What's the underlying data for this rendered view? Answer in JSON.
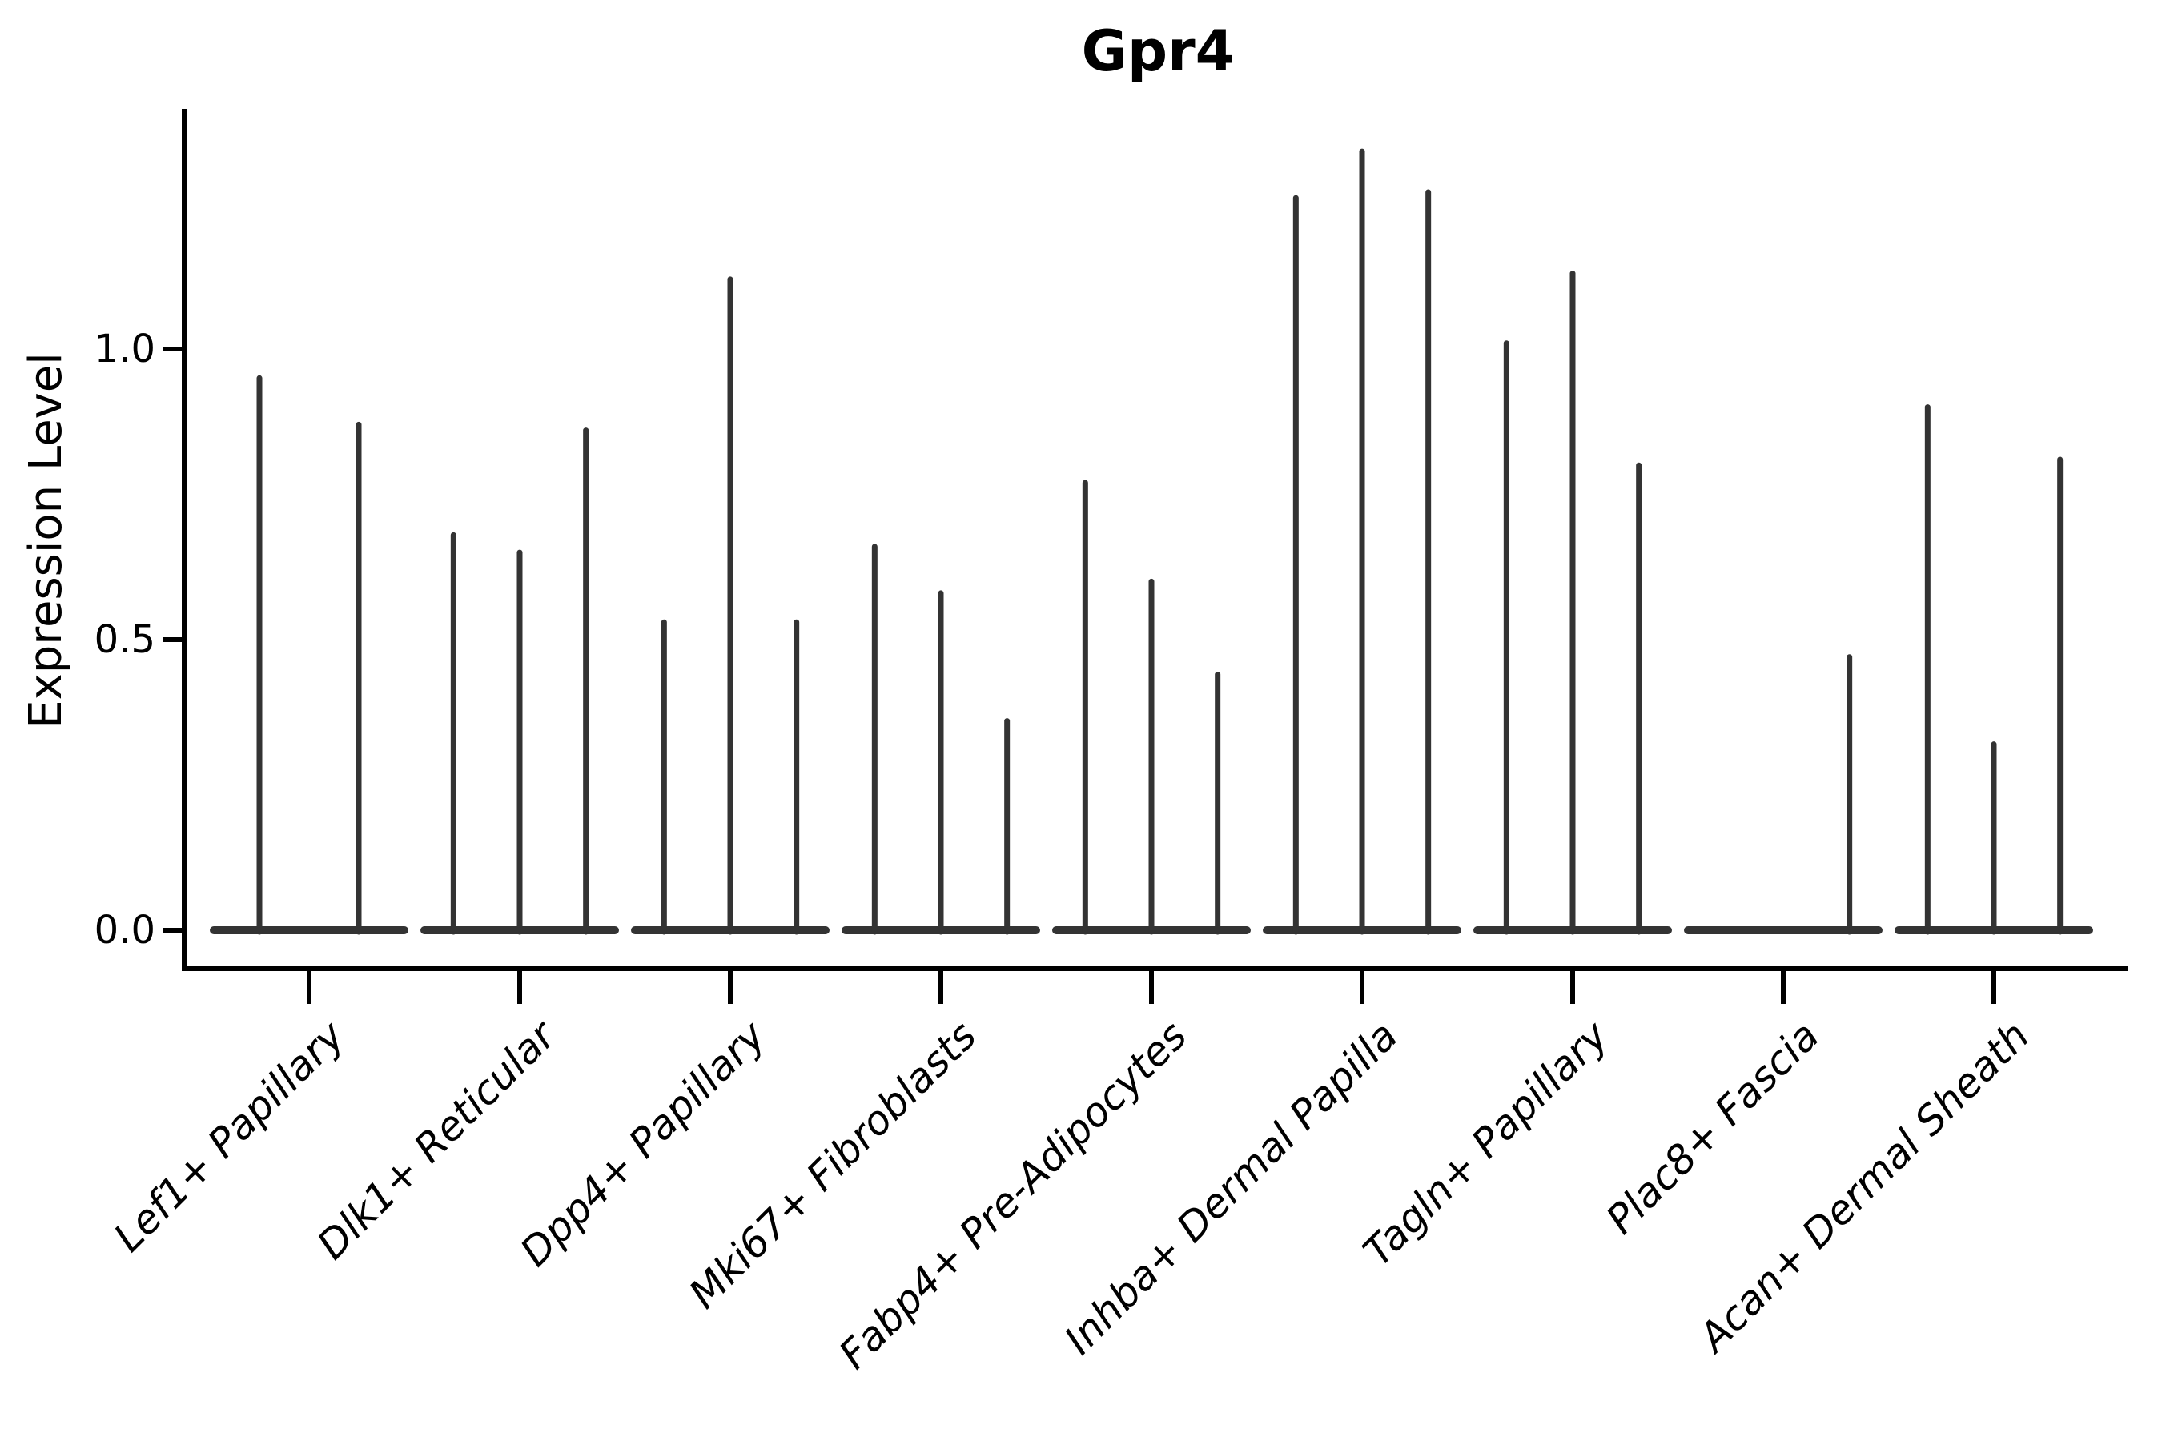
{
  "title": "Gpr4",
  "axes": {
    "ylabel": "Expression Level",
    "xlabel": ""
  },
  "chart_data": {
    "type": "violin",
    "title": "Gpr4",
    "ylabel": "Expression Level",
    "xlabel": "",
    "ytick_labels": [
      "0.0",
      "0.5",
      "1.0"
    ],
    "ytick_values": [
      0.0,
      0.5,
      1.0
    ],
    "ylim": [
      -0.07,
      1.41
    ],
    "grid": false,
    "legend": "none",
    "x_label_rotation_deg": 45,
    "categories": [
      {
        "label": "Lef1+ Papillary",
        "violin_maxima": [
          0.95,
          0.87
        ]
      },
      {
        "label": "Dlk1+ Reticular",
        "violin_maxima": [
          0.68,
          0.65,
          0.86
        ]
      },
      {
        "label": "Dpp4+ Papillary",
        "violin_maxima": [
          0.53,
          1.12,
          0.53
        ]
      },
      {
        "label": "Mki67+ Fibroblasts",
        "violin_maxima": [
          0.66,
          0.58,
          0.36
        ]
      },
      {
        "label": "Fabp4+ Pre-Adipocytes",
        "violin_maxima": [
          0.77,
          0.6,
          0.44
        ]
      },
      {
        "label": "Inhba+ Dermal Papilla",
        "violin_maxima": [
          1.26,
          1.34,
          1.27
        ]
      },
      {
        "label": "Tagln+ Papillary",
        "violin_maxima": [
          1.01,
          1.13,
          0.8
        ]
      },
      {
        "label": "Plac8+ Fascia",
        "violin_maxima": [
          0.0,
          0.0,
          0.47
        ]
      },
      {
        "label": "Acan+ Dermal Sheath",
        "violin_maxima": [
          0.9,
          0.32,
          0.81
        ]
      }
    ],
    "colors": {
      "violin": "#333333",
      "axis": "#000000",
      "text": "#000000",
      "background": "#ffffff"
    }
  }
}
